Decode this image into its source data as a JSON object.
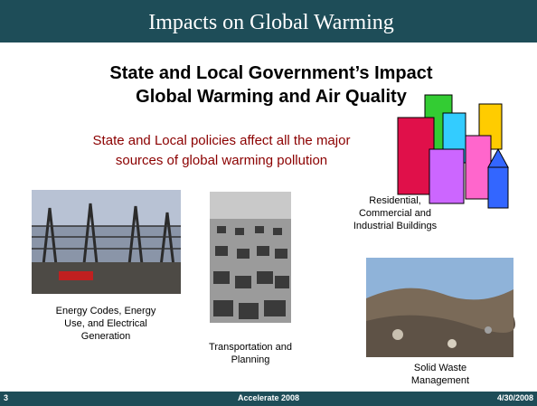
{
  "header": {
    "title": "Impacts on Global Warming"
  },
  "subtitle": [
    "State and Local Government’s Impact",
    "Global Warming and Air Quality"
  ],
  "intro": [
    "State and Local policies affect all the major",
    "sources of global warming pollution"
  ],
  "captions": {
    "energy": [
      "Energy Codes, Energy",
      "Use, and Electrical",
      "Generation"
    ],
    "transportation": [
      "Transportation and",
      "Planning"
    ],
    "buildings": [
      "Residential,",
      "Commercial and",
      "Industrial Buildings"
    ],
    "waste": [
      "Solid Waste",
      "Management"
    ]
  },
  "footer": {
    "slide_number": "3",
    "event": "Accelerate 2008",
    "date": "4/30/2008"
  }
}
